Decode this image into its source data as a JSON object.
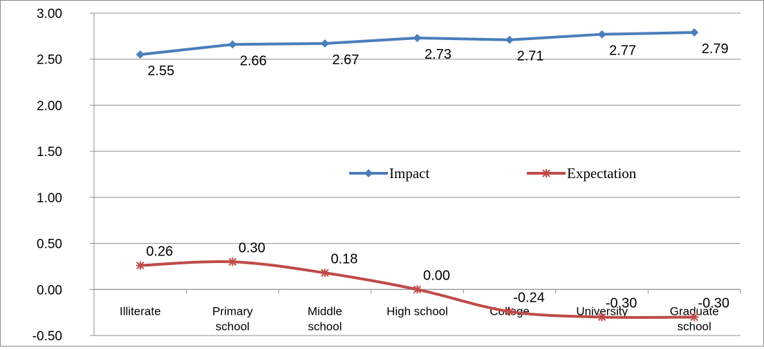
{
  "chart_data": {
    "type": "line",
    "title": "",
    "xlabel": "",
    "ylabel": "",
    "categories": [
      [
        "Illiterate"
      ],
      [
        "Primary",
        "school"
      ],
      [
        "Middle",
        "school"
      ],
      [
        "High school"
      ],
      [
        "College"
      ],
      [
        "University"
      ],
      [
        "Graduate",
        "school"
      ]
    ],
    "ylim": [
      -0.5,
      3.0
    ],
    "yticks": [
      "3.00",
      "2.50",
      "2.00",
      "1.50",
      "1.00",
      "0.50",
      "0.00",
      "-0.50"
    ],
    "grid": true,
    "legend_position": "center-right",
    "series": [
      {
        "name": "Impact",
        "color": "#4a7ebb",
        "marker": "diamond",
        "values": [
          2.55,
          2.66,
          2.67,
          2.73,
          2.71,
          2.77,
          2.79
        ],
        "labels": [
          "2.55",
          "2.66",
          "2.67",
          "2.73",
          "2.71",
          "2.77",
          "2.79"
        ]
      },
      {
        "name": "Expectation",
        "color": "#be4b48",
        "marker": "star",
        "values": [
          0.26,
          0.3,
          0.18,
          0.0,
          -0.24,
          -0.3,
          -0.3
        ],
        "labels": [
          "0.26",
          "0.30",
          "0.18",
          "0.00",
          "-0.24",
          "-0.30",
          "-0.30"
        ]
      }
    ]
  }
}
